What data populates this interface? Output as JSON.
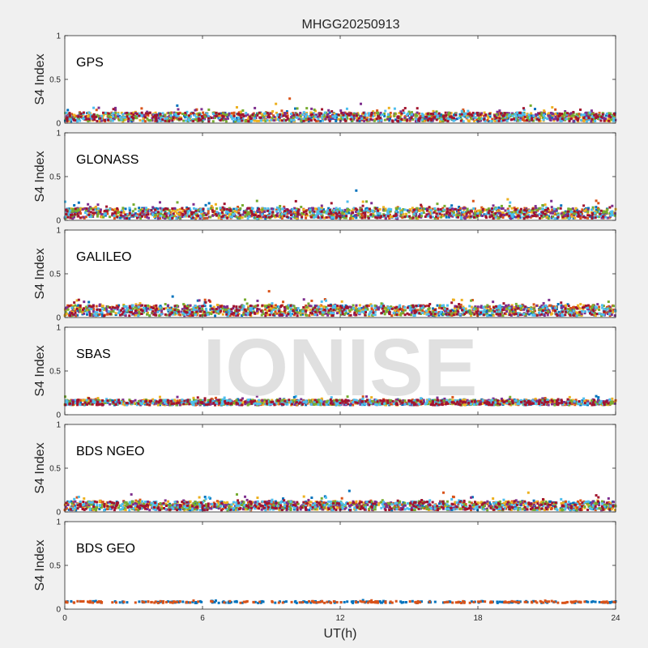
{
  "chart_data": {
    "type": "scatter",
    "title": "MHGG20250913",
    "xlabel": "UT(h)",
    "ylabel": "S4 Index",
    "xlim": [
      0,
      24
    ],
    "ylim": [
      0,
      1
    ],
    "xticks": [
      "0",
      "6",
      "12",
      "18",
      "24"
    ],
    "yticks": [
      "0",
      "0.5",
      "1"
    ],
    "watermark": "IONISE",
    "grid": false,
    "series_colors": [
      "#0072bd",
      "#d95319",
      "#edb120",
      "#7e2f8e",
      "#77ac30",
      "#4dbeee",
      "#a2142f"
    ],
    "panels": [
      {
        "name": "GPS",
        "baseline": 0.07,
        "spread": 0.05,
        "peaks": [
          {
            "x": 4.9,
            "y": 0.2
          },
          {
            "x": 9.8,
            "y": 0.28
          },
          {
            "x": 9.2,
            "y": 0.22
          },
          {
            "x": 12.9,
            "y": 0.22
          },
          {
            "x": 20.3,
            "y": 0.2
          }
        ]
      },
      {
        "name": "GLONASS",
        "baseline": 0.08,
        "spread": 0.06,
        "peaks": [
          {
            "x": 12.7,
            "y": 0.34
          },
          {
            "x": 17.8,
            "y": 0.22
          },
          {
            "x": 19.3,
            "y": 0.24
          },
          {
            "x": 21.2,
            "y": 0.22
          },
          {
            "x": 3.0,
            "y": 0.18
          }
        ]
      },
      {
        "name": "GALILEO",
        "baseline": 0.08,
        "spread": 0.06,
        "peaks": [
          {
            "x": 4.7,
            "y": 0.24
          },
          {
            "x": 8.9,
            "y": 0.3
          },
          {
            "x": 17.3,
            "y": 0.2
          },
          {
            "x": 21.1,
            "y": 0.2
          },
          {
            "x": 13.8,
            "y": 0.16
          }
        ]
      },
      {
        "name": "SBAS",
        "baseline": 0.14,
        "spread": 0.03,
        "peaks": [
          {
            "x": 10.0,
            "y": 0.2
          },
          {
            "x": 16.9,
            "y": 0.2
          },
          {
            "x": 22.0,
            "y": 0.2
          }
        ]
      },
      {
        "name": "BDS NGEO",
        "baseline": 0.07,
        "spread": 0.05,
        "peaks": [
          {
            "x": 12.4,
            "y": 0.24
          },
          {
            "x": 16.5,
            "y": 0.22
          },
          {
            "x": 20.2,
            "y": 0.22
          },
          {
            "x": 2.9,
            "y": 0.2
          },
          {
            "x": 7.5,
            "y": 0.2
          }
        ]
      },
      {
        "name": "BDS GEO",
        "baseline": 0.08,
        "spread": 0.01,
        "peaks": []
      }
    ]
  }
}
